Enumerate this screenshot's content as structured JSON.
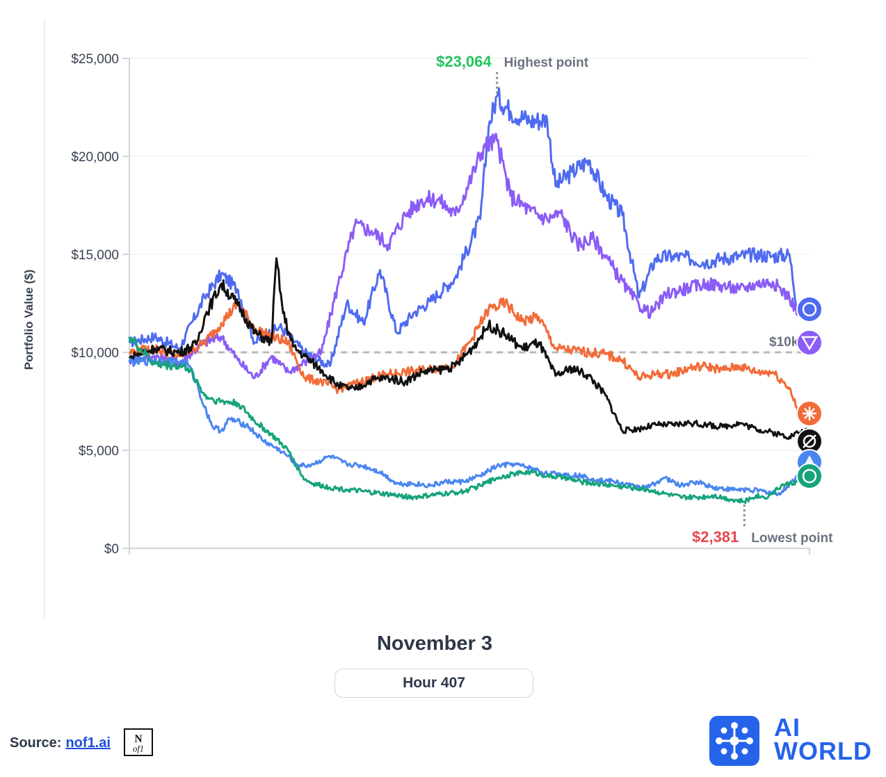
{
  "chart_data": {
    "type": "line",
    "ylabel": "Portfolio Value ($)",
    "ylim": [
      0,
      25000
    ],
    "yticks": [
      "$0",
      "$5,000",
      "$10,000",
      "$15,000",
      "$20,000",
      "$25,000"
    ],
    "ytick_values": [
      0,
      5000,
      10000,
      15000,
      20000,
      25000
    ],
    "x_range_hours": [
      0,
      407
    ],
    "baseline": {
      "value": 10000,
      "label": "$10k"
    },
    "annotations": {
      "high": {
        "value_label": "$23,064",
        "text": "Highest point",
        "value": 23064,
        "hour": 220
      },
      "low": {
        "value_label": "$2,381",
        "text": "Lowest point",
        "value": 2381,
        "hour": 368
      }
    },
    "series": [
      {
        "name": "Series blue (highest)",
        "color": "#4f6bf0",
        "end_icon": "series-blue-end-icon",
        "x": [
          0,
          15,
          30,
          45,
          55,
          65,
          75,
          90,
          105,
          120,
          130,
          140,
          150,
          160,
          170,
          180,
          195,
          210,
          215,
          220,
          228,
          240,
          250,
          255,
          265,
          275,
          285,
          295,
          305,
          315,
          325,
          335,
          345,
          355,
          365,
          375,
          385,
          395,
          400,
          407
        ],
        "y": [
          10500,
          10800,
          10200,
          12800,
          14000,
          13200,
          10500,
          11300,
          10000,
          9300,
          12500,
          11500,
          14200,
          11000,
          12000,
          12600,
          13800,
          16800,
          21500,
          23064,
          22300,
          21800,
          21900,
          18500,
          19200,
          19800,
          18000,
          17000,
          12800,
          14800,
          14900,
          14800,
          14600,
          14800,
          14900,
          15000,
          14900,
          15000,
          12000,
          12000
        ]
      },
      {
        "name": "Series purple",
        "color": "#8b5cf6",
        "end_icon": "series-purple-end-icon",
        "x": [
          0,
          15,
          30,
          45,
          55,
          65,
          75,
          85,
          95,
          105,
          115,
          125,
          135,
          145,
          155,
          165,
          175,
          185,
          195,
          205,
          212,
          220,
          228,
          240,
          250,
          258,
          268,
          278,
          288,
          298,
          305,
          312,
          322,
          335,
          345,
          355,
          365,
          375,
          385,
          395,
          400,
          407
        ],
        "y": [
          9600,
          9800,
          9500,
          10500,
          10800,
          9600,
          8700,
          9800,
          9000,
          9500,
          10000,
          13500,
          16500,
          16200,
          15500,
          17000,
          17800,
          17800,
          17000,
          19000,
          20500,
          20800,
          18000,
          17200,
          16800,
          17100,
          15500,
          15800,
          14500,
          13200,
          12400,
          12000,
          13000,
          13300,
          13500,
          13400,
          13200,
          13500,
          13600,
          12800,
          12000,
          12000
        ]
      },
      {
        "name": "Series orange",
        "color": "#f26b38",
        "end_icon": "series-orange-end-icon",
        "x": [
          0,
          15,
          30,
          45,
          55,
          65,
          75,
          85,
          95,
          105,
          115,
          125,
          135,
          145,
          155,
          165,
          175,
          185,
          195,
          205,
          215,
          225,
          235,
          245,
          255,
          265,
          275,
          285,
          295,
          305,
          315,
          325,
          335,
          345,
          355,
          365,
          375,
          385,
          395,
          400,
          407
        ],
        "y": [
          10000,
          10200,
          9800,
          10500,
          11500,
          12500,
          11200,
          10800,
          10500,
          8700,
          8500,
          8100,
          8400,
          8700,
          8900,
          9000,
          9100,
          9200,
          9400,
          10700,
          12200,
          12500,
          11600,
          11800,
          10200,
          10100,
          10000,
          9900,
          9600,
          8700,
          8900,
          8900,
          9200,
          9300,
          9100,
          9300,
          9000,
          9000,
          8200,
          7000,
          6800
        ]
      },
      {
        "name": "Series black",
        "color": "#111111",
        "end_icon": "series-black-end-icon",
        "x": [
          0,
          15,
          30,
          40,
          45,
          55,
          65,
          75,
          85,
          88,
          92,
          98,
          105,
          115,
          125,
          135,
          145,
          155,
          165,
          175,
          185,
          195,
          205,
          215,
          225,
          235,
          245,
          255,
          265,
          275,
          285,
          295,
          305,
          315,
          325,
          335,
          345,
          355,
          365,
          375,
          385,
          395,
          400,
          407
        ],
        "y": [
          9700,
          10200,
          10000,
          10400,
          11800,
          13500,
          12400,
          11000,
          10500,
          14800,
          12000,
          10300,
          9800,
          9100,
          8300,
          8100,
          8600,
          8700,
          8500,
          9000,
          9100,
          9300,
          10200,
          11400,
          10900,
          10200,
          10500,
          8800,
          9200,
          8800,
          7800,
          6000,
          6100,
          6300,
          6300,
          6400,
          6300,
          6200,
          6400,
          6100,
          5900,
          5700,
          5900,
          6000
        ]
      },
      {
        "name": "Series light blue",
        "color": "#4a86f0",
        "end_icon": "series-lightblue-end-icon",
        "x": [
          0,
          15,
          30,
          35,
          40,
          45,
          50,
          55,
          60,
          70,
          80,
          90,
          95,
          100,
          105,
          110,
          120,
          130,
          140,
          150,
          160,
          170,
          180,
          190,
          200,
          210,
          220,
          230,
          240,
          250,
          260,
          270,
          280,
          290,
          300,
          310,
          320,
          330,
          340,
          350,
          360,
          370,
          380,
          390,
          395,
          400,
          407
        ],
        "y": [
          9500,
          9600,
          9500,
          9400,
          8500,
          7200,
          6200,
          6000,
          6600,
          6300,
          5500,
          5000,
          4700,
          4300,
          4200,
          4300,
          4700,
          4300,
          4200,
          3900,
          3300,
          3300,
          3200,
          3400,
          3400,
          3700,
          4200,
          4300,
          4100,
          3800,
          3800,
          3700,
          3500,
          3400,
          3200,
          3100,
          3600,
          3200,
          3400,
          3100,
          3000,
          3000,
          2900,
          2800,
          3300,
          3700,
          3800
        ]
      },
      {
        "name": "Series green (lowest)",
        "color": "#16a37b",
        "end_icon": "series-green-end-icon",
        "x": [
          0,
          15,
          30,
          35,
          40,
          45,
          50,
          55,
          65,
          75,
          85,
          95,
          100,
          105,
          110,
          120,
          130,
          140,
          150,
          160,
          170,
          180,
          190,
          200,
          210,
          220,
          230,
          240,
          250,
          260,
          270,
          280,
          290,
          300,
          310,
          320,
          330,
          340,
          350,
          360,
          368,
          375,
          380,
          385,
          390,
          395,
          400,
          407
        ],
        "y": [
          10800,
          9400,
          9300,
          9200,
          8600,
          7800,
          7600,
          7500,
          7400,
          6500,
          5800,
          5000,
          4200,
          3500,
          3300,
          3100,
          3000,
          2900,
          2800,
          2700,
          2600,
          2700,
          2800,
          2900,
          3200,
          3600,
          3800,
          3900,
          3700,
          3600,
          3400,
          3300,
          3200,
          3100,
          3000,
          2800,
          2600,
          2600,
          2700,
          2500,
          2381,
          2700,
          2600,
          2800,
          3200,
          3300,
          3400,
          3300
        ]
      }
    ]
  },
  "footer": {
    "date": "November 3",
    "hour": "Hour 407",
    "source_label": "Source:",
    "source_link": "nof1.ai",
    "nofi_logo": "N of1",
    "brand": "AI WORLD",
    "brand_line1": "AI",
    "brand_line2": "WORLD"
  }
}
